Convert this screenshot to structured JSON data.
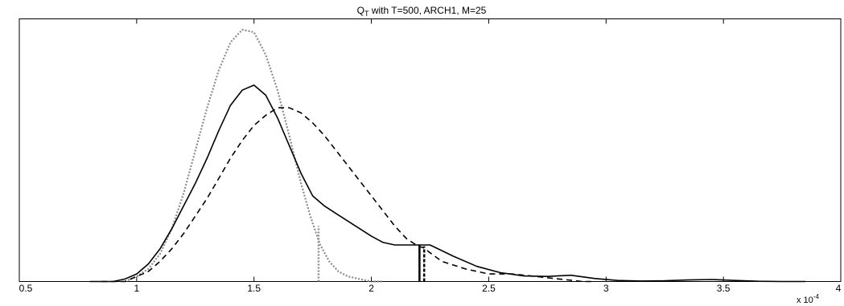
{
  "chart_data": {
    "type": "line",
    "title": {
      "prefix": "Q",
      "subscript": "T",
      "suffix": " with T=500, ARCH1, M=25"
    },
    "xlim": [
      0.5,
      4
    ],
    "ylim": [
      0,
      1
    ],
    "x_ticks": [
      0.5,
      1,
      1.5,
      2,
      2.5,
      3,
      3.5,
      4
    ],
    "x_tick_labels": [
      "0.5",
      "1",
      "1.5",
      "2",
      "2.5",
      "3",
      "3.5",
      "4"
    ],
    "x_scale_label": {
      "base": "x 10",
      "exponent": "-4"
    },
    "y_ticks_visible": false,
    "grid": false,
    "series": [
      {
        "style": "dotted",
        "color": "#8c8c8c",
        "x": [
          0.95,
          1.0,
          1.05,
          1.1,
          1.15,
          1.2,
          1.25,
          1.3,
          1.35,
          1.4,
          1.45,
          1.5,
          1.55,
          1.6,
          1.65,
          1.7,
          1.74,
          1.78,
          1.82,
          1.86,
          1.9,
          1.95,
          2.0,
          2.05
        ],
        "y": [
          0.0,
          0.02,
          0.05,
          0.11,
          0.21,
          0.35,
          0.52,
          0.69,
          0.84,
          0.95,
          1.0,
          0.99,
          0.9,
          0.76,
          0.58,
          0.39,
          0.26,
          0.15,
          0.08,
          0.04,
          0.02,
          0.01,
          0.0,
          0.0
        ],
        "vline": {
          "x": 1.775,
          "y_top": 0.22
        }
      },
      {
        "style": "solid",
        "color": "#000000",
        "x": [
          0.8,
          0.9,
          0.95,
          1.0,
          1.05,
          1.1,
          1.15,
          1.2,
          1.25,
          1.3,
          1.35,
          1.4,
          1.45,
          1.5,
          1.55,
          1.6,
          1.65,
          1.7,
          1.75,
          1.8,
          1.85,
          1.9,
          1.95,
          2.0,
          2.05,
          2.1,
          2.15,
          2.2,
          2.22,
          2.25,
          2.35,
          2.45,
          2.55,
          2.65,
          2.75,
          2.85,
          2.95,
          3.05,
          3.15,
          3.25,
          3.35,
          3.45,
          3.55,
          3.65,
          3.75,
          3.85
        ],
        "y": [
          0.0,
          0.0,
          0.01,
          0.03,
          0.07,
          0.13,
          0.21,
          0.3,
          0.39,
          0.49,
          0.6,
          0.7,
          0.76,
          0.78,
          0.74,
          0.65,
          0.54,
          0.43,
          0.34,
          0.3,
          0.27,
          0.24,
          0.21,
          0.18,
          0.155,
          0.145,
          0.145,
          0.145,
          0.145,
          0.145,
          0.1,
          0.06,
          0.035,
          0.022,
          0.02,
          0.025,
          0.012,
          0.004,
          0.002,
          0.003,
          0.006,
          0.008,
          0.004,
          0.001,
          0.0,
          0.0
        ],
        "vline": {
          "x": 2.205,
          "y_top": 0.145
        }
      },
      {
        "style": "dashed",
        "color": "#000000",
        "x": [
          0.85,
          0.95,
          1.0,
          1.05,
          1.1,
          1.15,
          1.2,
          1.25,
          1.3,
          1.35,
          1.4,
          1.45,
          1.5,
          1.55,
          1.6,
          1.65,
          1.7,
          1.75,
          1.8,
          1.85,
          1.9,
          1.95,
          2.0,
          2.05,
          2.1,
          2.15,
          2.2,
          2.22,
          2.3,
          2.4,
          2.5,
          2.6,
          2.7,
          2.8,
          2.9,
          2.95
        ],
        "y": [
          0.0,
          0.0,
          0.02,
          0.04,
          0.08,
          0.13,
          0.19,
          0.26,
          0.33,
          0.41,
          0.49,
          0.56,
          0.62,
          0.66,
          0.69,
          0.69,
          0.67,
          0.63,
          0.58,
          0.52,
          0.46,
          0.4,
          0.34,
          0.28,
          0.22,
          0.17,
          0.14,
          0.135,
          0.08,
          0.05,
          0.03,
          0.03,
          0.02,
          0.01,
          0.0,
          0.0
        ],
        "vline": {
          "x": 2.225,
          "y_top": 0.14
        }
      }
    ]
  }
}
